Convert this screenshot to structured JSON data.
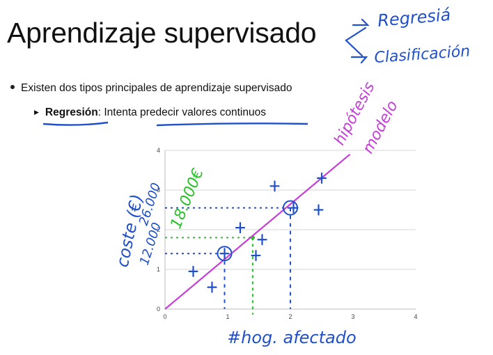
{
  "slide": {
    "title": "Aprendizaje supervisado",
    "bullet": "Existen dos tipos principales de aprendizaje supervisado",
    "sub_bold": "Regresión",
    "sub_rest": ": Intenta predecir valores continuos"
  },
  "annotations": {
    "top_right_1": "Regresiá",
    "top_right_2": "Clasificación",
    "hypothesis": "hipótesis",
    "model": "modelo",
    "ylabel_hw": "coste (€)",
    "y_val_1": "26.000",
    "y_val_2": "12.000",
    "y_val_3": "18.000€",
    "xlabel_hw": "#hog. afectado"
  },
  "colors": {
    "blue": "#1f4fc9",
    "green": "#2bc22b",
    "magenta": "#c43fd6",
    "underline": "#1f4fc9"
  },
  "chart_data": {
    "type": "scatter",
    "xlim": [
      0,
      4
    ],
    "ylim": [
      0,
      4
    ],
    "x_ticks": [
      "0",
      "1",
      "2",
      "3",
      "4"
    ],
    "y_ticks": [
      "0",
      "1",
      "2",
      "3",
      "4"
    ],
    "grid": true,
    "points": [
      {
        "x": 0.45,
        "y": 0.95
      },
      {
        "x": 0.75,
        "y": 0.55
      },
      {
        "x": 0.95,
        "y": 1.4
      },
      {
        "x": 1.2,
        "y": 2.05
      },
      {
        "x": 1.45,
        "y": 1.35
      },
      {
        "x": 1.55,
        "y": 1.75
      },
      {
        "x": 1.75,
        "y": 3.1
      },
      {
        "x": 2.05,
        "y": 2.55
      },
      {
        "x": 2.45,
        "y": 2.5
      },
      {
        "x": 2.5,
        "y": 3.3
      }
    ],
    "hypothesis_line": {
      "x": [
        0,
        2.95
      ],
      "y": [
        0,
        3.9
      ]
    },
    "highlight_points": [
      {
        "x": 0.95,
        "y": 1.4
      },
      {
        "x": 2.0,
        "y": 2.55
      }
    ],
    "prediction": {
      "x": 1.4,
      "y": 1.8
    }
  }
}
